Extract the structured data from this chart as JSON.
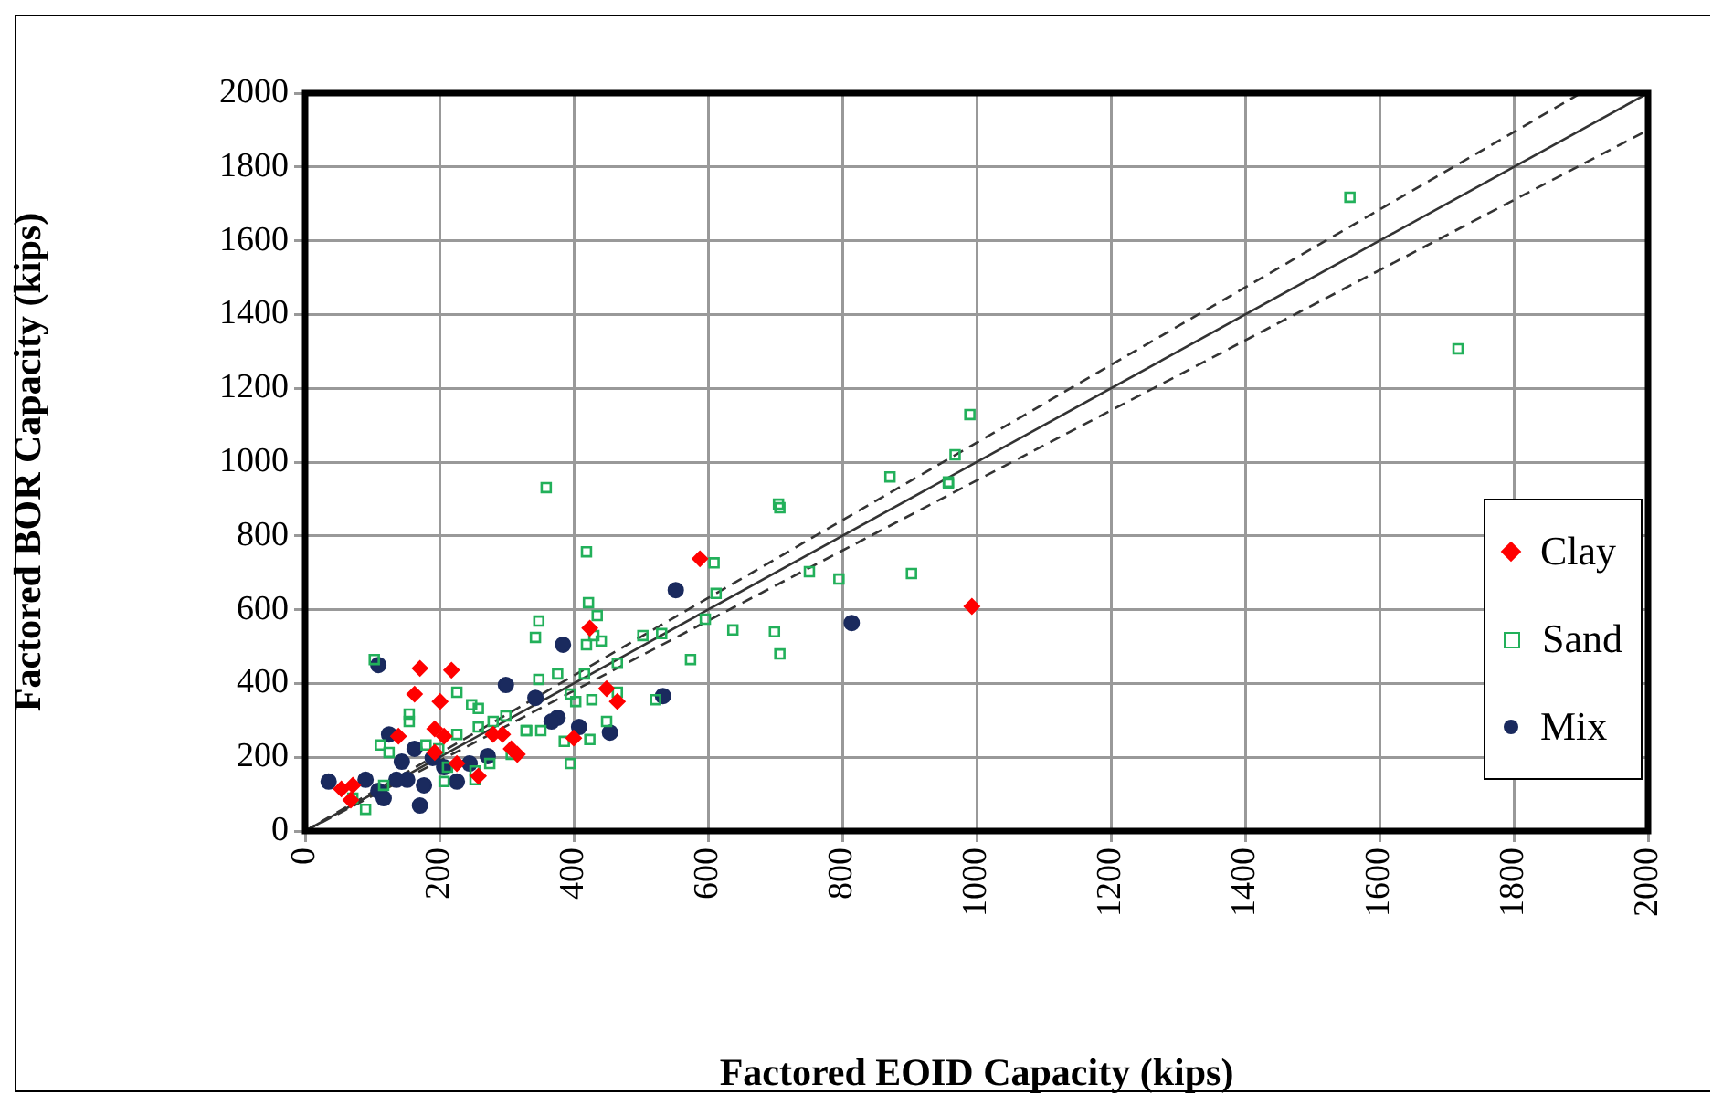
{
  "chart_data": {
    "type": "scatter",
    "xlabel": "Factored EOID Capacity (kips)",
    "ylabel": "Factored BOR Capacity (kips)",
    "xlim": [
      0,
      2000
    ],
    "ylim": [
      0,
      2000
    ],
    "xticks": [
      0,
      200,
      400,
      600,
      800,
      1000,
      1200,
      1400,
      1600,
      1800,
      2000
    ],
    "yticks": [
      0,
      200,
      400,
      600,
      800,
      1000,
      1200,
      1400,
      1600,
      1800,
      2000
    ],
    "grid": true,
    "legend": "bottom right",
    "series": [
      {
        "name": "Clay",
        "color": "#ff0000",
        "marker": "diamond",
        "x": [
          588,
          993,
          424,
          449,
          465,
          400,
          171,
          218,
          163,
          201,
          193,
          207,
          294,
          316,
          139,
          54,
          71,
          68,
          193,
          226,
          280,
          307,
          258
        ],
        "values": [
          738,
          609,
          550,
          386,
          351,
          252,
          441,
          436,
          371,
          351,
          277,
          257,
          262,
          208,
          257,
          114,
          124,
          84,
          213,
          183,
          262,
          223,
          149
        ]
      },
      {
        "name": "Sand",
        "color": "#22b05a",
        "marker": "square",
        "x": [
          1556,
          1717,
          990,
          968,
          958,
          871,
          958,
          705,
          707,
          419,
          359,
          609,
          751,
          795,
          903,
          612,
          596,
          637,
          699,
          707,
          574,
          422,
          435,
          348,
          343,
          419,
          430,
          441,
          503,
          531,
          465,
          416,
          376,
          348,
          465,
          427,
          403,
          395,
          522,
          449,
          424,
          386,
          395,
          351,
          330,
          103,
          226,
          248,
          258,
          155,
          155,
          299,
          112,
          125,
          258,
          280,
          329,
          226,
          180,
          199,
          212,
          253,
          253,
          207,
          275,
          307,
          117,
          71,
          90
        ],
        "values": [
          1718,
          1307,
          1129,
          1020,
          946,
          960,
          941,
          886,
          876,
          757,
          931,
          727,
          703,
          683,
          698,
          644,
          574,
          545,
          540,
          480,
          465,
          619,
          584,
          569,
          525,
          505,
          530,
          515,
          530,
          535,
          455,
          426,
          426,
          411,
          376,
          356,
          351,
          371,
          356,
          297,
          248,
          243,
          183,
          272,
          272,
          465,
          376,
          342,
          332,
          317,
          297,
          312,
          233,
          213,
          282,
          297,
          272,
          262,
          233,
          223,
          173,
          163,
          139,
          134,
          183,
          208,
          124,
          89,
          59
        ]
      },
      {
        "name": "Mix",
        "color": "#1a2a5e",
        "marker": "circle",
        "x": [
          109,
          384,
          299,
          343,
          376,
          367,
          408,
          125,
          163,
          190,
          207,
          144,
          245,
          272,
          177,
          152,
          136,
          109,
          90,
          35,
          171,
          117,
          226,
          552,
          814,
          533,
          454
        ],
        "values": [
          450,
          505,
          396,
          361,
          307,
          297,
          282,
          262,
          223,
          198,
          173,
          188,
          183,
          203,
          124,
          139,
          139,
          109,
          139,
          134,
          69,
          89,
          134,
          653,
          564,
          366,
          267
        ]
      },
      {
        "type": "line",
        "color": "#333333",
        "line_style": "solid",
        "marker": "none",
        "x": [
          0,
          2000
        ],
        "values": [
          0,
          2000
        ]
      },
      {
        "type": "line",
        "color": "#333333",
        "line_style": "dashed",
        "marker": "none",
        "x": [
          0,
          1900
        ],
        "values": [
          0,
          2000
        ]
      },
      {
        "type": "line",
        "color": "#333333",
        "line_style": "dashed",
        "marker": "none",
        "x": [
          0,
          2000
        ],
        "values": [
          0,
          1900
        ]
      }
    ]
  }
}
